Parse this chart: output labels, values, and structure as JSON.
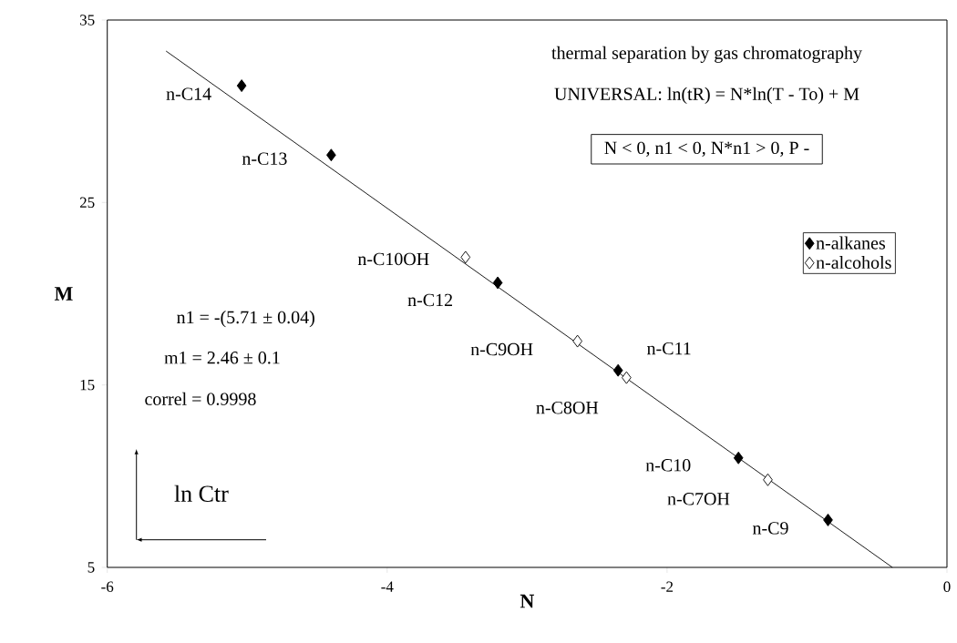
{
  "chart_data": {
    "type": "scatter",
    "xlabel": "N",
    "ylabel": "M",
    "xlim": [
      -6,
      0
    ],
    "ylim": [
      5,
      35
    ],
    "xticks": [
      -6,
      -4,
      -2,
      0
    ],
    "yticks": [
      5,
      15,
      25,
      35
    ],
    "grid": false,
    "legend": "right",
    "marker": "diamond",
    "series": [
      {
        "name": "n-alkanes",
        "color": "#000000",
        "x": [
          -5.04,
          -4.4,
          -3.21,
          -2.35,
          -1.49,
          -0.85
        ],
        "values": [
          31.4,
          27.6,
          20.6,
          15.8,
          11.0,
          7.6
        ]
      },
      {
        "name": "n-alcohols",
        "color": "#ffffff",
        "x": [
          -3.44,
          -2.64,
          -2.29,
          -1.28
        ],
        "values": [
          22.0,
          17.4,
          15.4,
          9.8
        ]
      },
      {
        "type": "line",
        "color": "#000000",
        "marker": "none",
        "x": [
          -5.58,
          -0.39
        ],
        "values": [
          33.3,
          5.0
        ]
      }
    ],
    "annotations": [
      "thermal separation by gas chromatography",
      "UNIVERSAL:  ln(tR)  =  N*ln(T - To)  +  M",
      "N < 0, n1 < 0, N*n1 > 0, P -",
      "n1 = -(5.71 ± 0.04)",
      "m1 = 2.46 ± 0.1",
      "correl  =  0.9998",
      "ln Ctr",
      {
        "text": "n-C14",
        "x": -5.04,
        "y": 31.4
      },
      {
        "text": "n-C13",
        "x": -4.4,
        "y": 27.6
      },
      {
        "text": "n-C10OH",
        "x": -3.44,
        "y": 22.0
      },
      {
        "text": "n-C12",
        "x": -3.21,
        "y": 20.6
      },
      {
        "text": "n-C9OH",
        "x": -2.64,
        "y": 17.4
      },
      {
        "text": "n-C11",
        "x": -2.35,
        "y": 15.8
      },
      {
        "text": "n-C8OH",
        "x": -2.29,
        "y": 15.4
      },
      {
        "text": "n-C10",
        "x": -1.49,
        "y": 11.0
      },
      {
        "text": "n-C7OH",
        "x": -1.28,
        "y": 9.8
      },
      {
        "text": "n-C9",
        "x": -0.85,
        "y": 7.6
      }
    ]
  }
}
